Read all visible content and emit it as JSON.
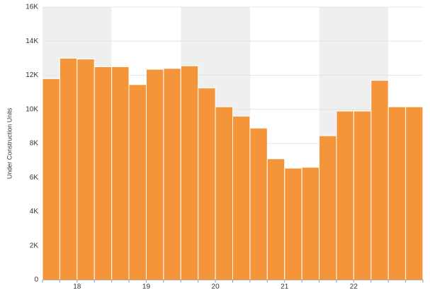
{
  "chart_data": {
    "type": "bar",
    "y_label": "Under Construction Units",
    "x_labels": [
      "18",
      "19",
      "20",
      "21",
      "22"
    ],
    "bars_per_label": 4,
    "values": [
      11800,
      13000,
      12950,
      12500,
      12500,
      11450,
      12350,
      12400,
      12550,
      11250,
      10150,
      9600,
      8900,
      7100,
      6550,
      6600,
      8450,
      9900,
      9900,
      11700,
      10150,
      10150
    ],
    "color": "#f5953a",
    "band_color": "#efefef",
    "ylim": [
      0,
      16000
    ],
    "yticks": [
      0,
      {
        "value": 2000,
        "label": "2K"
      },
      {
        "value": 4000,
        "label": "4K"
      },
      {
        "value": 6000,
        "label": "6K"
      },
      {
        "value": 8000,
        "label": "8K"
      },
      {
        "value": 10000,
        "label": "10K"
      },
      {
        "value": 12000,
        "label": "12K"
      },
      {
        "value": 14000,
        "label": "14K"
      },
      {
        "value": 16000,
        "label": "16K"
      }
    ],
    "grid": true
  }
}
